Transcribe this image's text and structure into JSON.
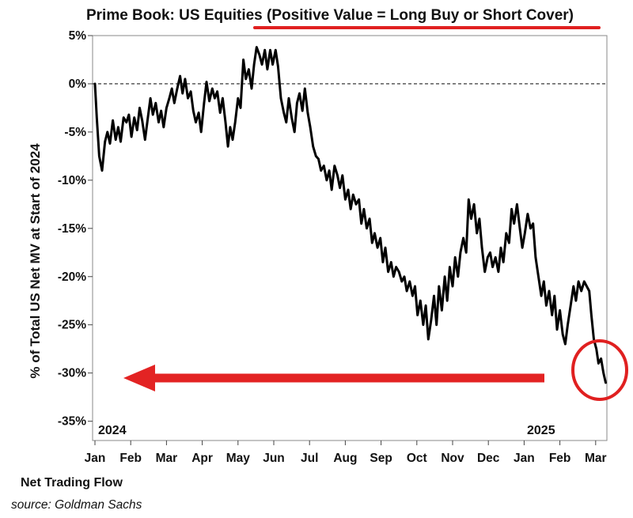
{
  "chart_data": {
    "type": "line",
    "title": "Prime Book: US Equities (Positive Value = Long Buy or Short Cover)",
    "xlabel": "Net Trading Flow",
    "ylabel": "% of Total US Net MV at Start of 2024",
    "source": "source: Goldman Sachs",
    "x_ticks": [
      "Jan",
      "Feb",
      "Mar",
      "Apr",
      "May",
      "Jun",
      "Jul",
      "Aug",
      "Sep",
      "Oct",
      "Nov",
      "Dec",
      "Jan",
      "Feb",
      "Mar"
    ],
    "y_ticks": [
      "5%",
      "0%",
      "-5%",
      "-10%",
      "-15%",
      "-20%",
      "-25%",
      "-30%",
      "-35%"
    ],
    "ylim": [
      -37,
      5
    ],
    "year_labels": [
      "2024",
      "2025"
    ],
    "reference_line": 0,
    "grid": false,
    "series": [
      {
        "color": "#000000",
        "x_unit": "months since start of 2024",
        "points": [
          [
            0.0,
            0.0
          ],
          [
            0.05,
            -3.5
          ],
          [
            0.12,
            -7.5
          ],
          [
            0.2,
            -9.0
          ],
          [
            0.28,
            -6.0
          ],
          [
            0.35,
            -5.0
          ],
          [
            0.42,
            -6.2
          ],
          [
            0.5,
            -3.8
          ],
          [
            0.58,
            -5.8
          ],
          [
            0.65,
            -4.5
          ],
          [
            0.72,
            -6.0
          ],
          [
            0.8,
            -3.5
          ],
          [
            0.88,
            -4.0
          ],
          [
            0.95,
            -3.2
          ],
          [
            1.02,
            -5.5
          ],
          [
            1.1,
            -3.5
          ],
          [
            1.18,
            -4.8
          ],
          [
            1.25,
            -2.5
          ],
          [
            1.32,
            -3.8
          ],
          [
            1.4,
            -5.8
          ],
          [
            1.48,
            -3.5
          ],
          [
            1.55,
            -1.5
          ],
          [
            1.62,
            -3.2
          ],
          [
            1.7,
            -2.0
          ],
          [
            1.78,
            -4.0
          ],
          [
            1.85,
            -2.8
          ],
          [
            1.92,
            -4.5
          ],
          [
            2.0,
            -2.5
          ],
          [
            2.08,
            -1.5
          ],
          [
            2.15,
            -0.5
          ],
          [
            2.22,
            -2.0
          ],
          [
            2.3,
            -0.5
          ],
          [
            2.38,
            0.8
          ],
          [
            2.45,
            -1.0
          ],
          [
            2.52,
            0.5
          ],
          [
            2.6,
            -1.5
          ],
          [
            2.68,
            -0.8
          ],
          [
            2.75,
            -2.8
          ],
          [
            2.82,
            -4.0
          ],
          [
            2.9,
            -3.0
          ],
          [
            2.97,
            -5.0
          ],
          [
            3.05,
            -2.0
          ],
          [
            3.12,
            0.2
          ],
          [
            3.2,
            -1.8
          ],
          [
            3.28,
            -0.5
          ],
          [
            3.35,
            -1.5
          ],
          [
            3.42,
            -0.8
          ],
          [
            3.5,
            -3.0
          ],
          [
            3.57,
            -1.5
          ],
          [
            3.65,
            -4.0
          ],
          [
            3.72,
            -6.5
          ],
          [
            3.78,
            -4.5
          ],
          [
            3.85,
            -5.8
          ],
          [
            3.92,
            -4.0
          ],
          [
            4.0,
            -1.5
          ],
          [
            4.07,
            -2.5
          ],
          [
            4.15,
            2.5
          ],
          [
            4.22,
            0.5
          ],
          [
            4.3,
            1.5
          ],
          [
            4.38,
            -0.5
          ],
          [
            4.45,
            2.0
          ],
          [
            4.52,
            3.8
          ],
          [
            4.6,
            3.0
          ],
          [
            4.67,
            2.0
          ],
          [
            4.75,
            3.5
          ],
          [
            4.82,
            1.5
          ],
          [
            4.9,
            3.5
          ],
          [
            4.97,
            2.0
          ],
          [
            5.05,
            3.5
          ],
          [
            5.12,
            1.8
          ],
          [
            5.2,
            -1.5
          ],
          [
            5.28,
            -3.0
          ],
          [
            5.35,
            -4.0
          ],
          [
            5.42,
            -1.5
          ],
          [
            5.5,
            -3.5
          ],
          [
            5.58,
            -5.0
          ],
          [
            5.65,
            -2.0
          ],
          [
            5.72,
            -1.0
          ],
          [
            5.8,
            -2.8
          ],
          [
            5.87,
            -0.5
          ],
          [
            5.95,
            -3.0
          ],
          [
            6.02,
            -4.5
          ],
          [
            6.1,
            -6.5
          ],
          [
            6.18,
            -7.5
          ],
          [
            6.25,
            -7.8
          ],
          [
            6.32,
            -9.0
          ],
          [
            6.4,
            -8.5
          ],
          [
            6.48,
            -10.0
          ],
          [
            6.55,
            -9.0
          ],
          [
            6.62,
            -11.0
          ],
          [
            6.7,
            -8.5
          ],
          [
            6.78,
            -9.5
          ],
          [
            6.85,
            -10.8
          ],
          [
            6.92,
            -9.5
          ],
          [
            7.0,
            -12.0
          ],
          [
            7.08,
            -11.0
          ],
          [
            7.15,
            -13.0
          ],
          [
            7.22,
            -11.5
          ],
          [
            7.3,
            -12.5
          ],
          [
            7.38,
            -12.0
          ],
          [
            7.45,
            -14.5
          ],
          [
            7.52,
            -13.0
          ],
          [
            7.6,
            -15.0
          ],
          [
            7.68,
            -14.0
          ],
          [
            7.75,
            -16.5
          ],
          [
            7.82,
            -15.5
          ],
          [
            7.9,
            -17.0
          ],
          [
            7.98,
            -16.0
          ],
          [
            8.05,
            -18.5
          ],
          [
            8.12,
            -17.0
          ],
          [
            8.2,
            -19.5
          ],
          [
            8.28,
            -18.5
          ],
          [
            8.35,
            -20.0
          ],
          [
            8.42,
            -19.0
          ],
          [
            8.5,
            -19.5
          ],
          [
            8.58,
            -20.5
          ],
          [
            8.65,
            -20.0
          ],
          [
            8.72,
            -21.5
          ],
          [
            8.8,
            -20.5
          ],
          [
            8.88,
            -22.0
          ],
          [
            8.95,
            -21.0
          ],
          [
            9.02,
            -24.0
          ],
          [
            9.1,
            -22.5
          ],
          [
            9.18,
            -25.0
          ],
          [
            9.25,
            -23.0
          ],
          [
            9.32,
            -26.5
          ],
          [
            9.4,
            -24.5
          ],
          [
            9.48,
            -22.0
          ],
          [
            9.55,
            -25.0
          ],
          [
            9.62,
            -21.0
          ],
          [
            9.7,
            -23.5
          ],
          [
            9.78,
            -20.0
          ],
          [
            9.85,
            -22.5
          ],
          [
            9.92,
            -19.0
          ],
          [
            10.0,
            -21.0
          ],
          [
            10.07,
            -18.0
          ],
          [
            10.15,
            -20.0
          ],
          [
            10.22,
            -17.5
          ],
          [
            10.3,
            -16.0
          ],
          [
            10.38,
            -17.5
          ],
          [
            10.45,
            -12.0
          ],
          [
            10.52,
            -14.0
          ],
          [
            10.6,
            -12.5
          ],
          [
            10.68,
            -15.5
          ],
          [
            10.75,
            -14.0
          ],
          [
            10.82,
            -17.0
          ],
          [
            10.9,
            -19.5
          ],
          [
            10.98,
            -18.0
          ],
          [
            11.05,
            -17.5
          ],
          [
            11.12,
            -19.0
          ],
          [
            11.2,
            -18.0
          ],
          [
            11.28,
            -19.5
          ],
          [
            11.35,
            -17.0
          ],
          [
            11.42,
            -18.5
          ],
          [
            11.5,
            -15.5
          ],
          [
            11.58,
            -16.5
          ],
          [
            11.65,
            -13.0
          ],
          [
            11.72,
            -14.5
          ],
          [
            11.8,
            -12.5
          ],
          [
            11.88,
            -15.0
          ],
          [
            11.95,
            -17.0
          ],
          [
            12.02,
            -15.5
          ],
          [
            12.1,
            -13.5
          ],
          [
            12.18,
            -15.0
          ],
          [
            12.25,
            -14.5
          ],
          [
            12.32,
            -18.0
          ],
          [
            12.4,
            -20.0
          ],
          [
            12.48,
            -22.0
          ],
          [
            12.55,
            -20.5
          ],
          [
            12.62,
            -23.0
          ],
          [
            12.7,
            -21.5
          ],
          [
            12.78,
            -24.0
          ],
          [
            12.85,
            -22.0
          ],
          [
            12.92,
            -25.5
          ],
          [
            13.0,
            -23.5
          ],
          [
            13.08,
            -26.0
          ],
          [
            13.15,
            -27.0
          ],
          [
            13.22,
            -25.0
          ],
          [
            13.3,
            -23.0
          ],
          [
            13.38,
            -21.0
          ],
          [
            13.45,
            -22.5
          ],
          [
            13.52,
            -20.5
          ],
          [
            13.6,
            -21.5
          ],
          [
            13.68,
            -20.5
          ],
          [
            13.75,
            -21.0
          ],
          [
            13.82,
            -21.5
          ],
          [
            13.88,
            -24.0
          ],
          [
            13.95,
            -26.5
          ],
          [
            14.02,
            -27.5
          ],
          [
            14.08,
            -29.0
          ],
          [
            14.15,
            -28.5
          ],
          [
            14.22,
            -30.0
          ],
          [
            14.28,
            -31.0
          ]
        ]
      }
    ],
    "annotations": {
      "underline_color": "#e02020",
      "arrow_color": "#e32323",
      "circle_color": "#e02020"
    }
  }
}
